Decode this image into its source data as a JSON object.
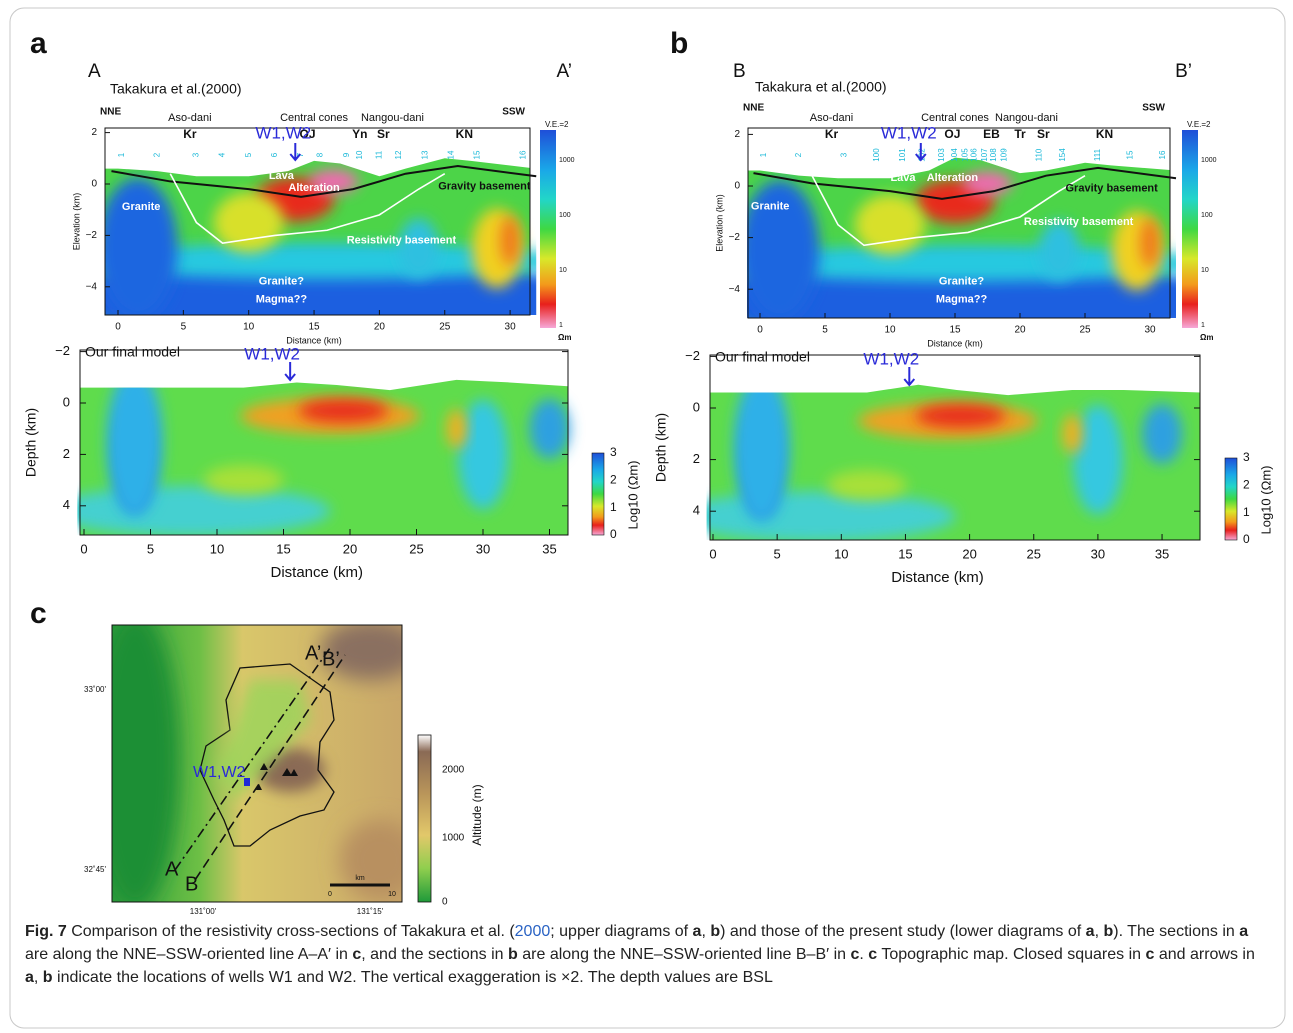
{
  "panels": [
    {
      "letter": "a",
      "upper": {
        "end_left": "A",
        "end_right": "A’",
        "source": "Takakura et al.(2000)",
        "dir_left": "NNE",
        "dir_right": "SSW",
        "areas": [
          "Aso-dani",
          "Central cones",
          "Nangou-dani"
        ],
        "sites": [
          "Kr",
          "OJ",
          "Yn",
          "Sr",
          "KN"
        ],
        "stations": [
          "1",
          "2",
          "3",
          "4",
          "5",
          "6",
          "7",
          "8",
          "9",
          "10",
          "11",
          "12",
          "13",
          "14",
          "15",
          "16"
        ],
        "well": "W1,W2",
        "ve": "V.E.=2",
        "units": [
          "Granite",
          "Lava",
          "Alteration",
          "Gravity basement",
          "Resistivity basement",
          "Granite?",
          "Magma??"
        ],
        "y_label": "Elevation (km)",
        "y_ticks": [
          "2",
          "0",
          "−2",
          "−4"
        ],
        "x_ticks": [
          "0",
          "5",
          "10",
          "15",
          "20",
          "25",
          "30"
        ],
        "x_label": "Distance (km)",
        "colorbar_ticks": [
          "1000",
          "100",
          "10",
          "1"
        ],
        "colorbar_unit": "Ωm"
      },
      "lower": {
        "title": "Our final model",
        "well": "W1,W2",
        "y_label": "Depth (km)",
        "y_ticks": [
          "−2",
          "0",
          "2",
          "4"
        ],
        "x_ticks": [
          "0",
          "5",
          "10",
          "15",
          "20",
          "25",
          "30",
          "35"
        ],
        "x_label": "Distance (km)",
        "colorbar_ticks": [
          "3",
          "2",
          "1",
          "0"
        ],
        "colorbar_label": "Log10 (Ωm)"
      }
    },
    {
      "letter": "b",
      "upper": {
        "end_left": "B",
        "end_right": "B’",
        "source": "Takakura et al.(2000)",
        "dir_left": "NNE",
        "dir_right": "SSW",
        "areas": [
          "Aso-dani",
          "Central cones",
          "Nangou-dani"
        ],
        "sites": [
          "Kr",
          "OJ",
          "EB",
          "Tr",
          "Sr",
          "KN"
        ],
        "stations": [
          "1",
          "2",
          "3",
          "100",
          "101",
          "102",
          "103",
          "104",
          "105",
          "106",
          "107",
          "108",
          "109",
          "110",
          "154",
          "111",
          "15",
          "16"
        ],
        "well": "W1,W2",
        "ve": "V.E.=2",
        "units": [
          "Granite",
          "Lava",
          "Alteration",
          "Gravity basement",
          "Resistivity basement",
          "Granite?",
          "Magma??"
        ],
        "y_label": "Elevation (km)",
        "y_ticks": [
          "2",
          "0",
          "−2",
          "−4"
        ],
        "x_ticks": [
          "0",
          "5",
          "10",
          "15",
          "20",
          "25",
          "30"
        ],
        "x_label": "Distance (km)",
        "colorbar_ticks": [
          "1000",
          "100",
          "10",
          "1"
        ],
        "colorbar_unit": "Ωm"
      },
      "lower": {
        "title": "Our final model",
        "well": "W1,W2",
        "y_label": "Depth (km)",
        "y_ticks": [
          "−2",
          "0",
          "2",
          "4"
        ],
        "x_ticks": [
          "0",
          "5",
          "10",
          "15",
          "20",
          "25",
          "30",
          "35"
        ],
        "x_label": "Distance (km)",
        "colorbar_ticks": [
          "3",
          "2",
          "1",
          "0"
        ],
        "colorbar_label": "Log10 (Ωm)"
      }
    }
  ],
  "map": {
    "letter": "c",
    "line_a": [
      "A",
      "A’"
    ],
    "line_b": [
      "B",
      "B’"
    ],
    "well": "W1,W2",
    "lat_ticks": [
      "33˚00'",
      "32˚45'"
    ],
    "lon_ticks": [
      "131˚00'",
      "131˚15'"
    ],
    "scale_unit": "km",
    "scale_ticks": [
      "0",
      "10"
    ],
    "colorbar_label": "Altitude (m)",
    "colorbar_ticks": [
      "2000",
      "1000",
      "0"
    ]
  },
  "caption": [
    {
      "text": "Fig. 7",
      "style": "bold"
    },
    {
      "text": "  Comparison of the resistivity cross-sections of Takakura et al. (",
      "style": "plain"
    },
    {
      "text": "2000",
      "style": "link"
    },
    {
      "text": "; upper diagrams of ",
      "style": "plain"
    },
    {
      "text": "a",
      "style": "bold"
    },
    {
      "text": ", ",
      "style": "plain"
    },
    {
      "text": "b",
      "style": "bold"
    },
    {
      "text": ") and those of the present study (lower diagrams of ",
      "style": "plain"
    },
    {
      "text": "a",
      "style": "bold"
    },
    {
      "text": ", ",
      "style": "plain"
    },
    {
      "text": "b",
      "style": "bold"
    },
    {
      "text": "). The sections in ",
      "style": "plain"
    },
    {
      "text": "a",
      "style": "bold"
    },
    {
      "text": " are along the NNE–SSW-oriented line A–A′ in ",
      "style": "plain"
    },
    {
      "text": "c",
      "style": "bold"
    },
    {
      "text": ", and the sections in ",
      "style": "plain"
    },
    {
      "text": "b",
      "style": "bold"
    },
    {
      "text": " are along the NNE–SSW-oriented line B–B′ in ",
      "style": "plain"
    },
    {
      "text": "c",
      "style": "bold"
    },
    {
      "text": ". ",
      "style": "plain"
    },
    {
      "text": "c",
      "style": "bold"
    },
    {
      "text": " Topographic map. Closed squares in ",
      "style": "plain"
    },
    {
      "text": "c",
      "style": "bold"
    },
    {
      "text": " and arrows in ",
      "style": "plain"
    },
    {
      "text": "a",
      "style": "bold"
    },
    {
      "text": ", ",
      "style": "plain"
    },
    {
      "text": "b",
      "style": "bold"
    },
    {
      "text": " indicate the locations of wells W1 and W2. The vertical exaggeration is ×2. The depth values are BSL",
      "style": "plain"
    }
  ]
}
